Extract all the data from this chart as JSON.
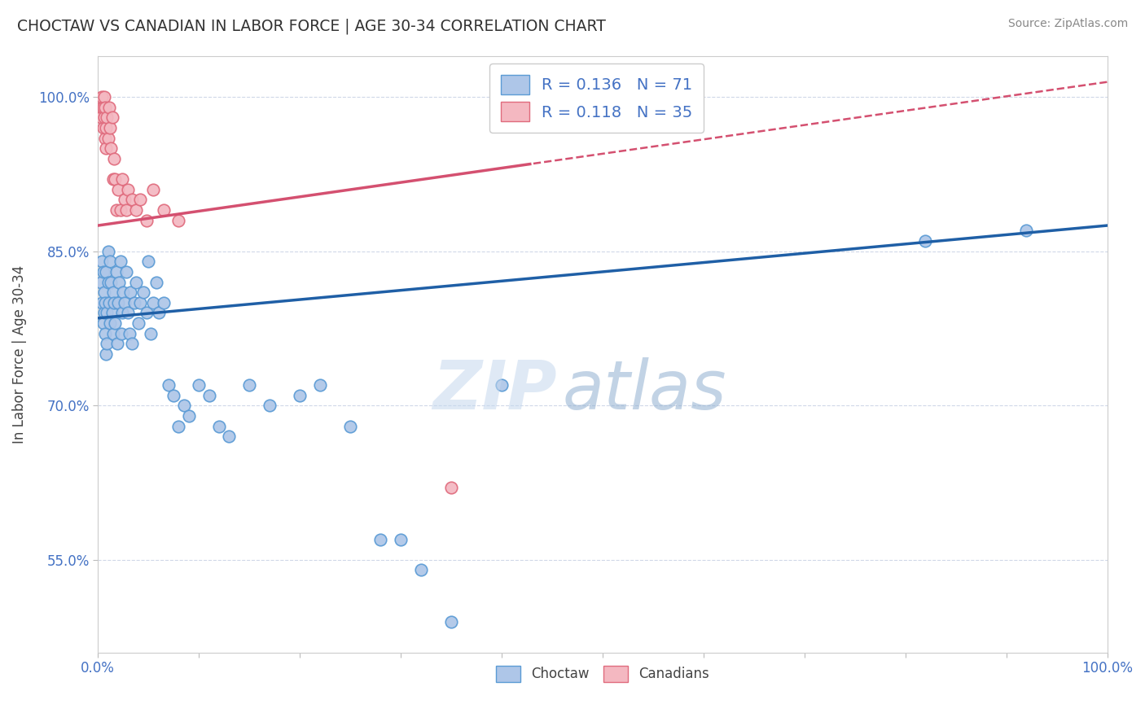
{
  "title": "CHOCTAW VS CANADIAN IN LABOR FORCE | AGE 30-34 CORRELATION CHART",
  "source_text": "Source: ZipAtlas.com",
  "ylabel": "In Labor Force | Age 30-34",
  "xlim": [
    0.0,
    1.0
  ],
  "ylim": [
    0.46,
    1.04
  ],
  "y_ticks": [
    0.55,
    0.7,
    0.85,
    1.0
  ],
  "y_tick_labels": [
    "55.0%",
    "70.0%",
    "85.0%",
    "100.0%"
  ],
  "x_ticks": [
    0.0,
    0.1,
    0.2,
    0.3,
    0.4,
    0.5,
    0.6,
    0.7,
    0.8,
    0.9,
    1.0
  ],
  "x_tick_labels": [
    "0.0%",
    "",
    "",
    "",
    "",
    "",
    "",
    "",
    "",
    "",
    "100.0%"
  ],
  "choctaw_color": "#aec6e8",
  "canadian_color": "#f4b8c1",
  "choctaw_edge": "#5b9bd5",
  "canadian_edge": "#e06b7d",
  "trend_blue": "#1f5fa6",
  "trend_pink": "#d45070",
  "R_choctaw": 0.136,
  "N_choctaw": 71,
  "R_canadian": 0.118,
  "N_canadian": 35,
  "choctaw_x": [
    0.003,
    0.004,
    0.004,
    0.005,
    0.005,
    0.006,
    0.006,
    0.007,
    0.007,
    0.008,
    0.008,
    0.009,
    0.009,
    0.01,
    0.01,
    0.011,
    0.012,
    0.012,
    0.013,
    0.014,
    0.015,
    0.015,
    0.016,
    0.017,
    0.018,
    0.019,
    0.02,
    0.021,
    0.022,
    0.023,
    0.024,
    0.025,
    0.026,
    0.028,
    0.03,
    0.031,
    0.032,
    0.034,
    0.036,
    0.038,
    0.04,
    0.042,
    0.045,
    0.048,
    0.05,
    0.052,
    0.055,
    0.058,
    0.06,
    0.065,
    0.07,
    0.075,
    0.08,
    0.085,
    0.09,
    0.1,
    0.11,
    0.12,
    0.13,
    0.15,
    0.17,
    0.2,
    0.22,
    0.25,
    0.28,
    0.3,
    0.32,
    0.35,
    0.4,
    0.82,
    0.92
  ],
  "choctaw_y": [
    0.82,
    0.8,
    0.84,
    0.78,
    0.83,
    0.81,
    0.79,
    0.77,
    0.8,
    0.83,
    0.75,
    0.79,
    0.76,
    0.85,
    0.82,
    0.8,
    0.84,
    0.78,
    0.82,
    0.79,
    0.77,
    0.81,
    0.8,
    0.78,
    0.83,
    0.76,
    0.8,
    0.82,
    0.84,
    0.77,
    0.79,
    0.81,
    0.8,
    0.83,
    0.79,
    0.77,
    0.81,
    0.76,
    0.8,
    0.82,
    0.78,
    0.8,
    0.81,
    0.79,
    0.84,
    0.77,
    0.8,
    0.82,
    0.79,
    0.8,
    0.72,
    0.71,
    0.68,
    0.7,
    0.69,
    0.72,
    0.71,
    0.68,
    0.67,
    0.72,
    0.7,
    0.71,
    0.72,
    0.68,
    0.57,
    0.57,
    0.54,
    0.49,
    0.72,
    0.86,
    0.87
  ],
  "canadian_x": [
    0.003,
    0.004,
    0.004,
    0.005,
    0.005,
    0.006,
    0.006,
    0.007,
    0.007,
    0.008,
    0.008,
    0.009,
    0.01,
    0.011,
    0.012,
    0.013,
    0.014,
    0.015,
    0.016,
    0.017,
    0.018,
    0.02,
    0.022,
    0.024,
    0.026,
    0.028,
    0.03,
    0.034,
    0.038,
    0.042,
    0.048,
    0.055,
    0.065,
    0.08,
    0.35
  ],
  "canadian_y": [
    0.98,
    0.99,
    1.0,
    0.97,
    0.99,
    1.0,
    0.98,
    0.96,
    0.99,
    0.97,
    0.95,
    0.98,
    0.96,
    0.99,
    0.97,
    0.95,
    0.98,
    0.92,
    0.94,
    0.92,
    0.89,
    0.91,
    0.89,
    0.92,
    0.9,
    0.89,
    0.91,
    0.9,
    0.89,
    0.9,
    0.88,
    0.91,
    0.89,
    0.88,
    0.62
  ],
  "watermark_zip": "ZIP",
  "watermark_atlas": "atlas",
  "background_color": "#ffffff",
  "grid_color": "#d0d8e8"
}
